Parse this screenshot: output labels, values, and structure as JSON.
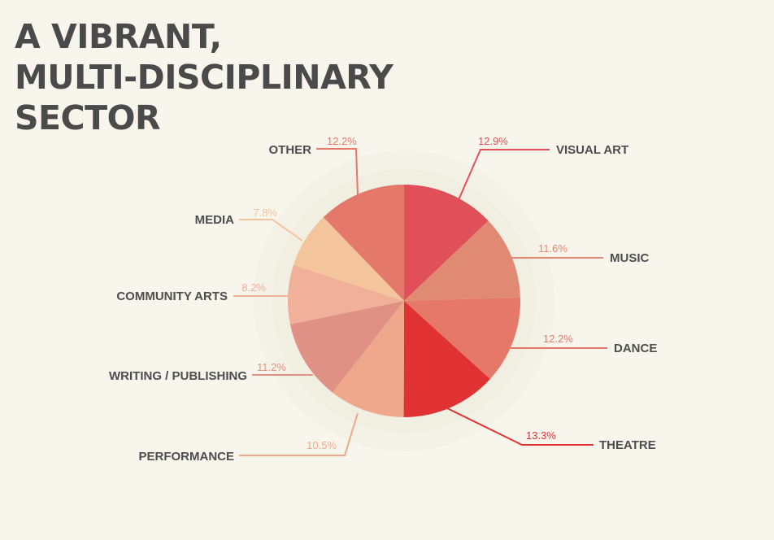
{
  "title": {
    "line1": "A VIBRANT,",
    "line2": "MULTI-DISCIPLINARY",
    "line3": "SECTOR"
  },
  "chart_data": {
    "type": "pie",
    "title": "A VIBRANT, MULTI-DISCIPLINARY SECTOR",
    "start": "12 o'clock",
    "direction": "clockwise",
    "legend": "none (leader-line labels)",
    "slices": [
      {
        "label": "VISUAL ART",
        "value": 12.9,
        "value_label": "12.9%",
        "color": "#e05058"
      },
      {
        "label": "MUSIC",
        "value": 11.6,
        "value_label": "11.6%",
        "color": "#e08a74"
      },
      {
        "label": "DANCE",
        "value": 12.2,
        "value_label": "12.2%",
        "color": "#e6786a"
      },
      {
        "label": "THEATRE",
        "value": 13.3,
        "value_label": "13.3%",
        "color": "#e03232"
      },
      {
        "label": "PERFORMANCE",
        "value": 10.5,
        "value_label": "10.5%",
        "color": "#f0a88c"
      },
      {
        "label": "WRITING / PUBLISHING",
        "value": 11.2,
        "value_label": "11.2%",
        "color": "#de9184"
      },
      {
        "label": "COMMUNITY ARTS",
        "value": 8.2,
        "value_label": "8.2%",
        "color": "#f0b09a"
      },
      {
        "label": "MEDIA",
        "value": 7.8,
        "value_label": "7.8%",
        "color": "#f4c49c"
      },
      {
        "label": "OTHER",
        "value": 12.2,
        "value_label": "12.2%",
        "color": "#e4786a"
      }
    ]
  }
}
